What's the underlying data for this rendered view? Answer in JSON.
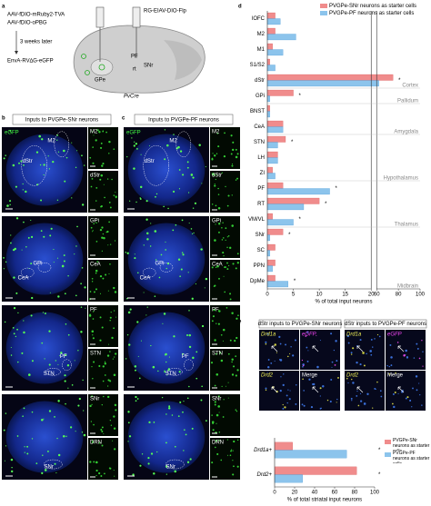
{
  "panel_labels": [
    "a",
    "b",
    "c",
    "d",
    "e",
    "f"
  ],
  "schematic": {
    "injection_1": "AAV-fDIO-mRuby2-TVA",
    "injection_2": "AAV-fDIO-oPBG",
    "wait": "3 weeks later",
    "injection_3": "EnvA-RV∆G-eGFP",
    "injection_4": "RG-EIAV-DIO-Flp",
    "regions": [
      "GPe",
      "PF",
      "rt",
      "SNr"
    ],
    "mouse": "PvCre"
  },
  "panel_b": {
    "title": "Inputs to PVGPe-SNr neurons",
    "channel": "eGFP",
    "rows": [
      {
        "brain_labels": [
          "M2",
          "dStr"
        ],
        "insets": [
          "M2",
          "dStr"
        ]
      },
      {
        "brain_labels": [
          "GPi",
          "CeA"
        ],
        "insets": [
          "GPi",
          "CeA"
        ]
      },
      {
        "brain_labels": [
          "PF",
          "STN"
        ],
        "insets": [
          "PF",
          "STN"
        ]
      },
      {
        "brain_labels": [
          "SNr"
        ],
        "insets": [
          "SNr",
          "DRN"
        ]
      }
    ]
  },
  "panel_c": {
    "title": "Inputs to PVGPe-PF neurons",
    "channel": "eGFP",
    "rows": [
      {
        "brain_labels": [
          "M2",
          "dStr"
        ],
        "insets": [
          "M2",
          "dStr"
        ]
      },
      {
        "brain_labels": [
          "GPi",
          "CeA"
        ],
        "insets": [
          "GPi",
          "CeA"
        ]
      },
      {
        "brain_labels": [
          "PF",
          "STN"
        ],
        "insets": [
          "PF",
          "STN"
        ]
      },
      {
        "brain_labels": [
          "SNr"
        ],
        "insets": [
          "SNr",
          "DRN"
        ]
      }
    ]
  },
  "panel_e": {
    "groups": [
      {
        "title": "dStr inputs to PVGPe-SNr neurons",
        "channels": [
          "Drd1a",
          "eGFP",
          "Drd2",
          "Merge"
        ]
      },
      {
        "title": "dStr inputs to PVGPe-PF neurons",
        "channels": [
          "Drd1a",
          "eGFP",
          "Drd2",
          "Merge"
        ]
      }
    ]
  },
  "chart_data": [
    {
      "type": "hbar",
      "x_label": "% of total input neurons",
      "categories": [
        "lOFC",
        "M2",
        "M1",
        "S1/S2",
        "dStr",
        "GPi",
        "BNST",
        "CeA",
        "STN",
        "LH",
        "ZI",
        "PF",
        "RT",
        "VM/VL",
        "SNr",
        "SC",
        "PPN",
        "DpMe"
      ],
      "series": [
        {
          "name": "PVGPe-SNr neurons as starter cells",
          "color": "#f08c8c",
          "values": [
            1.5,
            1.5,
            1,
            0.5,
            75,
            5,
            0.5,
            3,
            3.5,
            2,
            1,
            3,
            10,
            1,
            3,
            1.5,
            1.5,
            1.5
          ]
        },
        {
          "name": "PVGPe-PF neurons as starter cells",
          "color": "#8cc4ec",
          "values": [
            2.5,
            5.5,
            3,
            1.5,
            62,
            0.5,
            0.5,
            3,
            2,
            2,
            1.5,
            12,
            7,
            5,
            0.5,
            0.5,
            1,
            4
          ]
        }
      ],
      "xlim": [
        0,
        100
      ],
      "x_break": [
        20,
        60
      ],
      "xticks": [
        0,
        5,
        10,
        15,
        20,
        60,
        80,
        100
      ],
      "annotations": [
        "Cortex",
        "Pallidum",
        "Amygdala",
        "Hypothalamus",
        "Thalamus",
        "Midbrain"
      ],
      "significance": [
        "*",
        "*",
        "*",
        "*",
        "*",
        "*",
        "*",
        "*"
      ],
      "legend": "top-right"
    },
    {
      "type": "hbar",
      "x_label": "% of total striatal input neurons",
      "categories": [
        "Drd1a+",
        "Drd2+"
      ],
      "series": [
        {
          "name": "PVGPe-SNr neurons as starter cells",
          "color": "#f08c8c",
          "values": [
            18,
            82
          ]
        },
        {
          "name": "PVGPe-PF neurons as starter cells",
          "color": "#8cc4ec",
          "values": [
            72,
            28
          ]
        }
      ],
      "xlim": [
        0,
        100
      ],
      "xticks": [
        0,
        20,
        40,
        60,
        80,
        100
      ],
      "significance": [
        "*",
        "*"
      ],
      "legend": "right"
    }
  ]
}
